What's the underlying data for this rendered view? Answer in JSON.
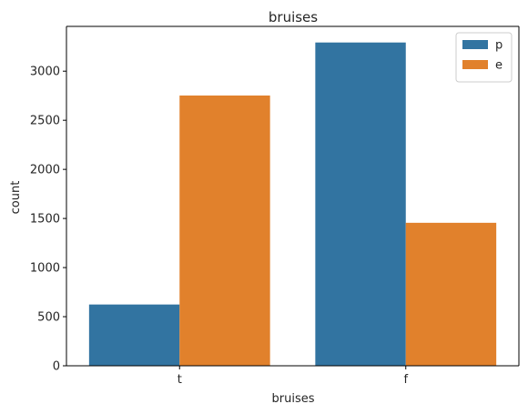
{
  "chart_data": {
    "type": "bar",
    "title": "bruises",
    "xlabel": "bruises",
    "ylabel": "count",
    "categories": [
      "t",
      "f"
    ],
    "series": [
      {
        "name": "p",
        "values": [
          624,
          3292
        ],
        "color": "#3274a1"
      },
      {
        "name": "e",
        "values": [
          2752,
          1456
        ],
        "color": "#e1812c"
      }
    ],
    "ylim": [
      0,
      3456
    ],
    "yticks": [
      0,
      500,
      1000,
      1500,
      2000,
      2500,
      3000
    ],
    "grid": false,
    "legend_position": "upper right"
  }
}
